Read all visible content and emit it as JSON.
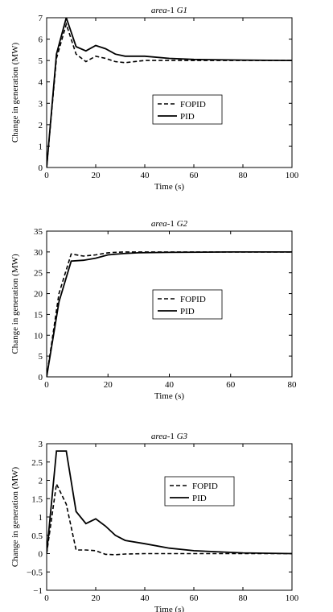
{
  "chart_data": [
    {
      "type": "line",
      "title_prefix": "area",
      "title_suffix": "-1 ",
      "title_gen": "G1",
      "xlabel": "Time (s)",
      "ylabel": "Change in generation (MW)",
      "xlim": [
        0,
        100
      ],
      "ylim": [
        0,
        7
      ],
      "xticks": [
        "0",
        "20",
        "40",
        "60",
        "80",
        "100"
      ],
      "yticks": [
        "0",
        "1",
        "2",
        "3",
        "4",
        "5",
        "6",
        "7"
      ],
      "grid": false,
      "legend_position": "center",
      "series": [
        {
          "name": "FOPID",
          "style": "dashed",
          "x": [
            0,
            4,
            8,
            12,
            16,
            20,
            24,
            28,
            32,
            40,
            50,
            60,
            80,
            100
          ],
          "y": [
            0,
            5.1,
            6.7,
            5.3,
            4.95,
            5.2,
            5.1,
            4.95,
            4.9,
            5.0,
            5.0,
            5.0,
            5.0,
            5.0
          ]
        },
        {
          "name": "PID",
          "style": "solid",
          "x": [
            0,
            4,
            8,
            12,
            16,
            20,
            24,
            28,
            32,
            40,
            50,
            60,
            80,
            100
          ],
          "y": [
            0,
            5.3,
            7.0,
            5.65,
            5.45,
            5.7,
            5.55,
            5.3,
            5.2,
            5.2,
            5.1,
            5.05,
            5.02,
            5.0
          ]
        }
      ]
    },
    {
      "type": "line",
      "title_prefix": "area",
      "title_suffix": "-1 ",
      "title_gen": "G2",
      "xlabel": "Time (s)",
      "ylabel": "Change in generation (MW)",
      "xlim": [
        0,
        80
      ],
      "ylim": [
        0,
        35
      ],
      "xticks": [
        "0",
        "20",
        "40",
        "60",
        "80"
      ],
      "yticks": [
        "0",
        "5",
        "10",
        "15",
        "20",
        "25",
        "30",
        "35"
      ],
      "grid": false,
      "legend_position": "center",
      "series": [
        {
          "name": "FOPID",
          "style": "dashed",
          "x": [
            0,
            4,
            8,
            12,
            16,
            20,
            25,
            30,
            40,
            60,
            80
          ],
          "y": [
            0,
            20,
            29.5,
            29.0,
            29.3,
            29.8,
            30.0,
            30.0,
            30.0,
            30.0,
            30.0
          ]
        },
        {
          "name": "PID",
          "style": "solid",
          "x": [
            0,
            4,
            8,
            12,
            16,
            20,
            25,
            30,
            40,
            60,
            80
          ],
          "y": [
            0,
            18,
            27.8,
            28.0,
            28.5,
            29.3,
            29.6,
            29.8,
            29.9,
            30.0,
            30.0
          ]
        }
      ]
    },
    {
      "type": "line",
      "title_prefix": "area",
      "title_suffix": "-1 ",
      "title_gen": "G3",
      "xlabel": "Time (s)",
      "ylabel": "Change in generation (MW)",
      "xlim": [
        0,
        100
      ],
      "ylim": [
        -1,
        3
      ],
      "xticks": [
        "0",
        "20",
        "40",
        "60",
        "80",
        "100"
      ],
      "yticks": [
        "−1",
        "−0.5",
        "0",
        "0.5",
        "1",
        "1.5",
        "2",
        "2.5",
        "3"
      ],
      "grid": false,
      "legend_position": "upper-center",
      "series": [
        {
          "name": "FOPID",
          "style": "dashed",
          "x": [
            0,
            4,
            8,
            12,
            16,
            20,
            24,
            28,
            32,
            40,
            60,
            80,
            100
          ],
          "y": [
            0,
            1.9,
            1.35,
            0.1,
            0.1,
            0.08,
            -0.02,
            -0.03,
            -0.01,
            0.0,
            0.0,
            0.0,
            0.0
          ]
        },
        {
          "name": "PID",
          "style": "solid",
          "x": [
            0,
            4,
            8,
            12,
            16,
            20,
            24,
            28,
            32,
            40,
            50,
            60,
            80,
            100
          ],
          "y": [
            0,
            2.8,
            2.8,
            1.15,
            0.82,
            0.95,
            0.75,
            0.5,
            0.36,
            0.27,
            0.15,
            0.08,
            0.02,
            0.0
          ]
        }
      ]
    }
  ]
}
